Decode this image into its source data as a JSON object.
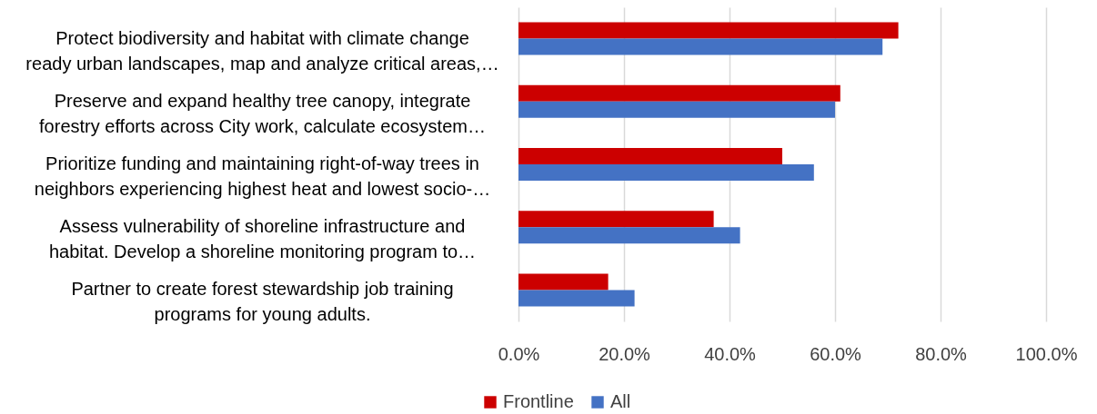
{
  "chart_data": {
    "type": "bar",
    "orientation": "horizontal",
    "categories": [
      "Protect biodiversity and habitat with climate change\nready urban landscapes, map and analyze critical areas,…",
      "Preserve and expand healthy tree canopy, integrate\nforestry efforts across City work, calculate ecosystem…",
      "Prioritize funding and maintaining right-of-way trees in\nneighbors experiencing highest heat and lowest socio-…",
      "Assess vulnerability of shoreline infrastructure and\nhabitat. Develop a shoreline monitoring program to…",
      "Partner to create forest stewardship job training\nprograms for young adults."
    ],
    "series": [
      {
        "name": "Frontline",
        "color": "#cc0000",
        "values": [
          72,
          61,
          50,
          37,
          17
        ]
      },
      {
        "name": "All",
        "color": "#4472c4",
        "values": [
          69,
          60,
          56,
          42,
          22
        ]
      }
    ],
    "xlim": [
      0,
      100
    ],
    "xticks": [
      {
        "value": 0,
        "label": "0.0%"
      },
      {
        "value": 20,
        "label": "20.0%"
      },
      {
        "value": 40,
        "label": "40.0%"
      },
      {
        "value": 60,
        "label": "60.0%"
      },
      {
        "value": 80,
        "label": "80.0%"
      },
      {
        "value": 100,
        "label": "100.0%"
      }
    ],
    "grid": "x",
    "legend": "bottom"
  }
}
